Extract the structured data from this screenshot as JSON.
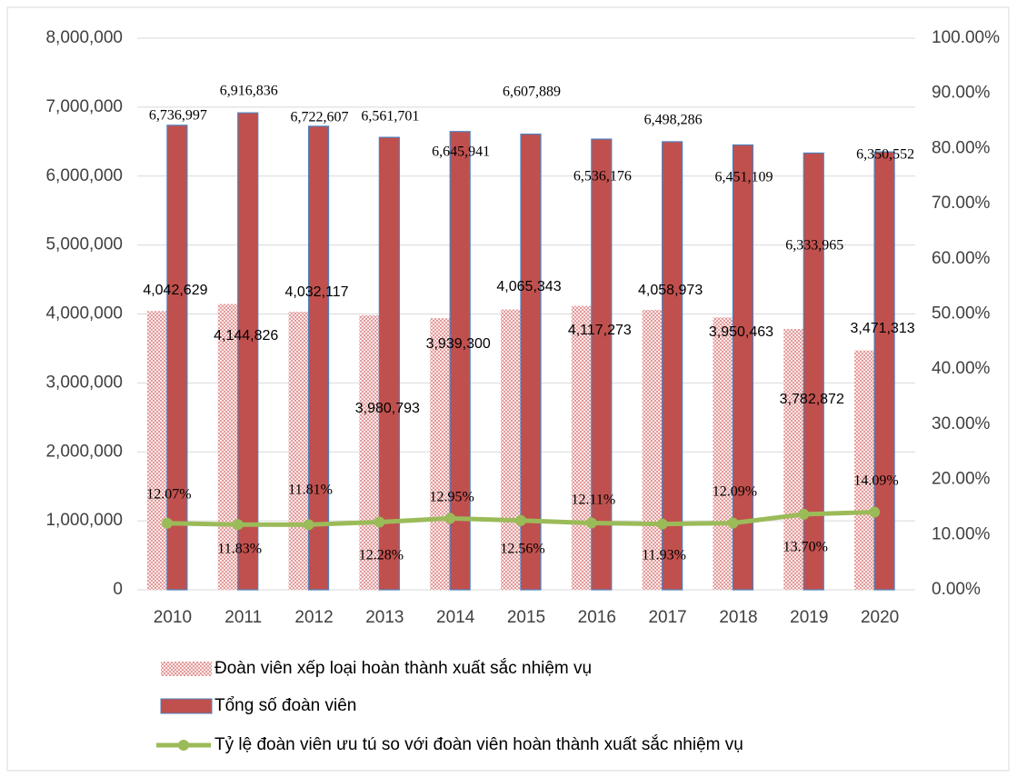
{
  "chart_data": {
    "type": "bar",
    "categories": [
      "2010",
      "2011",
      "2012",
      "2013",
      "2014",
      "2015",
      "2016",
      "2017",
      "2018",
      "2019",
      "2020"
    ],
    "series": [
      {
        "name": "Đoàn viên xếp loại hoàn thành xuất sắc nhiệm vụ",
        "color": "#e6a3a3",
        "values": [
          4042629,
          4144826,
          4032117,
          3980793,
          3939300,
          4065343,
          4117273,
          4058973,
          3950463,
          3782872,
          3471313
        ],
        "value_labels": [
          "4,042,629",
          "4,144,826",
          "4,032,117",
          "3,980,793",
          "3,939,300",
          "4,065,343",
          "4,117,273",
          "4,058,973",
          "3,950,463",
          "3,782,872",
          "3,471,313"
        ]
      },
      {
        "name": "Tổng số đoàn viên",
        "color": "#c0504d",
        "values": [
          6736997,
          6916836,
          6722607,
          6561701,
          6645941,
          6607889,
          6536176,
          6498286,
          6451109,
          6333965,
          6350552
        ],
        "value_labels": [
          "6,736,997",
          "6,916,836",
          "6,722,607",
          "6,561,701",
          "6,645,941",
          "6,607,889",
          "6,536,176",
          "6,498,286",
          "6,451,109",
          "6,333,965",
          "6,350,552"
        ]
      },
      {
        "name": "Tỷ lệ đoàn viên ưu tú so với đoàn viên hoàn thành xuất sắc nhiệm vụ",
        "color": "#9bbb59",
        "type": "line",
        "axis": "y2",
        "values": [
          12.07,
          11.83,
          11.81,
          12.28,
          12.95,
          12.56,
          12.11,
          11.93,
          12.09,
          13.7,
          14.09
        ],
        "value_labels": [
          "12.07%",
          "11.83%",
          "11.81%",
          "12.28%",
          "12.95%",
          "12.56%",
          "12.11%",
          "11.93%",
          "12.09%",
          "13.70%",
          "14.09%"
        ]
      }
    ],
    "ylim": [
      0,
      8000000
    ],
    "yticks": [
      0,
      {
        "value": 1000000,
        "label": "1,000,000"
      },
      {
        "value": 2000000,
        "label": "2,000,000"
      },
      {
        "value": 3000000,
        "label": "3,000,000"
      },
      {
        "value": 4000000,
        "label": "4,000,000"
      },
      {
        "value": 5000000,
        "label": "5,000,000"
      },
      {
        "value": 6000000,
        "label": "6,000,000"
      },
      {
        "value": 7000000,
        "label": "7,000,000"
      },
      {
        "value": 8000000,
        "label": "8,000,000"
      }
    ],
    "y2lim": [
      0,
      100
    ],
    "y2ticks": [
      {
        "value": 0,
        "label": "0.00%"
      },
      {
        "value": 10,
        "label": "10.00%"
      },
      {
        "value": 20,
        "label": "20.00%"
      },
      {
        "value": 30,
        "label": "30.00%"
      },
      {
        "value": 40,
        "label": "40.00%"
      },
      {
        "value": 50,
        "label": "50.00%"
      },
      {
        "value": 60,
        "label": "60.00%"
      },
      {
        "value": 70,
        "label": "70.00%"
      },
      {
        "value": 80,
        "label": "80.00%"
      },
      {
        "value": 90,
        "label": "90.00%"
      },
      {
        "value": 100,
        "label": "100.00%"
      }
    ],
    "grid": true,
    "legend": "bottom"
  }
}
